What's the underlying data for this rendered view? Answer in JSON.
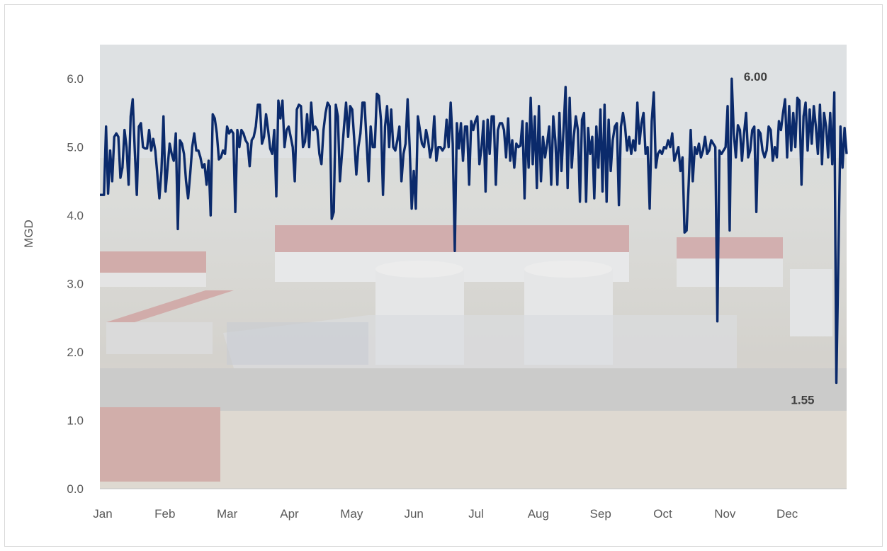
{
  "chart_data": {
    "type": "line",
    "title": "",
    "xlabel": "",
    "ylabel": "MGD",
    "ylim": [
      0,
      6.5
    ],
    "yticks": [
      "0.0",
      "1.0",
      "2.0",
      "3.0",
      "4.0",
      "5.0",
      "6.0"
    ],
    "x_tick_labels": [
      "Jan",
      "Feb",
      "Mar",
      "Apr",
      "May",
      "Jun",
      "Jul",
      "Aug",
      "Sep",
      "Oct",
      "Nov",
      "Dec"
    ],
    "grid": false,
    "legend": "none",
    "line_color": "#0b2a6b",
    "background": "photograph of water treatment plant (faded)",
    "annotations": [
      {
        "text": "6.00",
        "day": 303,
        "value": 6.0
      },
      {
        "text": "1.55",
        "day": 355,
        "value": 1.55
      }
    ],
    "series": [
      {
        "values": [
          4.3,
          4.3,
          4.3,
          5.3,
          4.32,
          4.95,
          4.5,
          5.15,
          5.2,
          5.15,
          4.55,
          4.7,
          5.25,
          5.0,
          4.45,
          5.45,
          5.7,
          4.95,
          4.3,
          5.3,
          5.35,
          5.0,
          4.98,
          4.98,
          5.25,
          4.95,
          5.12,
          4.95,
          4.6,
          4.25,
          4.65,
          5.45,
          4.35,
          4.7,
          5.05,
          4.9,
          4.8,
          5.2,
          3.8,
          5.1,
          5.05,
          4.9,
          4.5,
          4.25,
          4.6,
          5.0,
          5.2,
          4.95,
          4.95,
          4.85,
          4.7,
          4.75,
          4.45,
          4.8,
          4.0,
          5.48,
          5.42,
          5.2,
          4.82,
          4.85,
          4.95,
          4.9,
          5.3,
          5.2,
          5.25,
          5.2,
          4.05,
          5.25,
          5.0,
          5.25,
          5.2,
          5.1,
          5.05,
          4.72,
          5.1,
          5.15,
          5.3,
          5.62,
          5.62,
          5.05,
          5.15,
          5.48,
          5.25,
          4.98,
          4.9,
          5.25,
          4.28,
          5.68,
          5.42,
          5.68,
          5.0,
          5.25,
          5.3,
          5.15,
          5.0,
          4.5,
          5.55,
          5.62,
          5.6,
          5.0,
          5.08,
          5.48,
          5.0,
          5.65,
          5.25,
          5.3,
          5.25,
          4.9,
          4.75,
          5.25,
          5.5,
          5.65,
          5.6,
          3.95,
          4.05,
          5.62,
          5.45,
          4.5,
          4.9,
          5.3,
          5.65,
          5.15,
          5.6,
          5.55,
          5.1,
          4.6,
          5.0,
          5.2,
          5.65,
          5.65,
          5.08,
          4.5,
          5.3,
          5.0,
          5.0,
          5.78,
          5.75,
          5.4,
          4.3,
          5.3,
          5.6,
          5.0,
          5.55,
          5.0,
          4.95,
          5.1,
          5.3,
          4.5,
          4.9,
          5.05,
          5.7,
          5.0,
          4.1,
          4.65,
          4.1,
          5.45,
          5.25,
          5.05,
          5.0,
          5.25,
          5.1,
          4.85,
          5.0,
          5.45,
          4.8,
          5.0,
          5.0,
          4.95,
          5.0,
          5.4,
          5.0,
          5.65,
          5.05,
          3.48,
          5.35,
          4.98,
          5.35,
          4.8,
          5.3,
          5.3,
          4.45,
          5.38,
          5.25,
          5.38,
          5.45,
          4.75,
          4.98,
          5.38,
          4.35,
          5.4,
          4.9,
          5.45,
          5.45,
          4.45,
          5.25,
          5.35,
          5.35,
          5.25,
          4.85,
          5.42,
          4.8,
          5.1,
          4.7,
          5.05,
          5.0,
          5.02,
          5.38,
          4.25,
          5.35,
          4.7,
          5.72,
          4.75,
          5.45,
          4.4,
          5.6,
          4.5,
          5.15,
          4.85,
          5.05,
          5.3,
          4.45,
          5.45,
          5.1,
          4.45,
          5.5,
          4.65,
          5.25,
          5.88,
          4.4,
          5.72,
          4.7,
          5.15,
          5.45,
          5.25,
          4.2,
          5.4,
          5.5,
          4.2,
          5.28,
          4.9,
          5.15,
          4.25,
          5.3,
          4.7,
          5.55,
          4.35,
          5.62,
          4.2,
          5.4,
          4.65,
          5.1,
          5.3,
          5.35,
          4.15,
          5.3,
          5.5,
          5.3,
          4.95,
          5.15,
          4.9,
          5.1,
          4.95,
          5.65,
          5.05,
          5.35,
          5.5,
          4.9,
          5.0,
          4.1,
          5.38,
          5.8,
          4.7,
          4.9,
          4.95,
          4.9,
          5.0,
          4.98,
          5.1,
          5.0,
          5.2,
          4.8,
          4.9,
          5.0,
          4.65,
          4.85,
          3.75,
          3.78,
          4.45,
          5.25,
          4.5,
          5.0,
          4.9,
          5.05,
          4.85,
          4.95,
          5.15,
          4.9,
          4.95,
          5.1,
          5.05,
          5.0,
          2.45,
          4.95,
          4.9,
          4.95,
          5.0,
          5.6,
          3.78,
          6.0,
          5.2,
          4.85,
          5.32,
          5.25,
          4.8,
          5.2,
          5.5,
          4.85,
          4.95,
          5.25,
          5.3,
          4.05,
          5.25,
          5.2,
          4.95,
          4.85,
          4.95,
          5.3,
          5.25,
          4.8,
          5.0,
          4.85,
          5.38,
          5.25,
          5.5,
          5.7,
          4.85,
          5.6,
          4.95,
          5.5,
          5.0,
          5.72,
          5.68,
          4.45,
          5.45,
          5.65,
          4.95,
          5.55,
          5.05,
          5.6,
          5.3,
          4.9,
          5.62,
          4.75,
          5.5,
          5.3,
          4.85,
          5.5,
          4.75,
          5.8,
          1.55,
          3.4,
          5.3,
          4.7,
          5.28,
          4.9
        ]
      }
    ]
  }
}
